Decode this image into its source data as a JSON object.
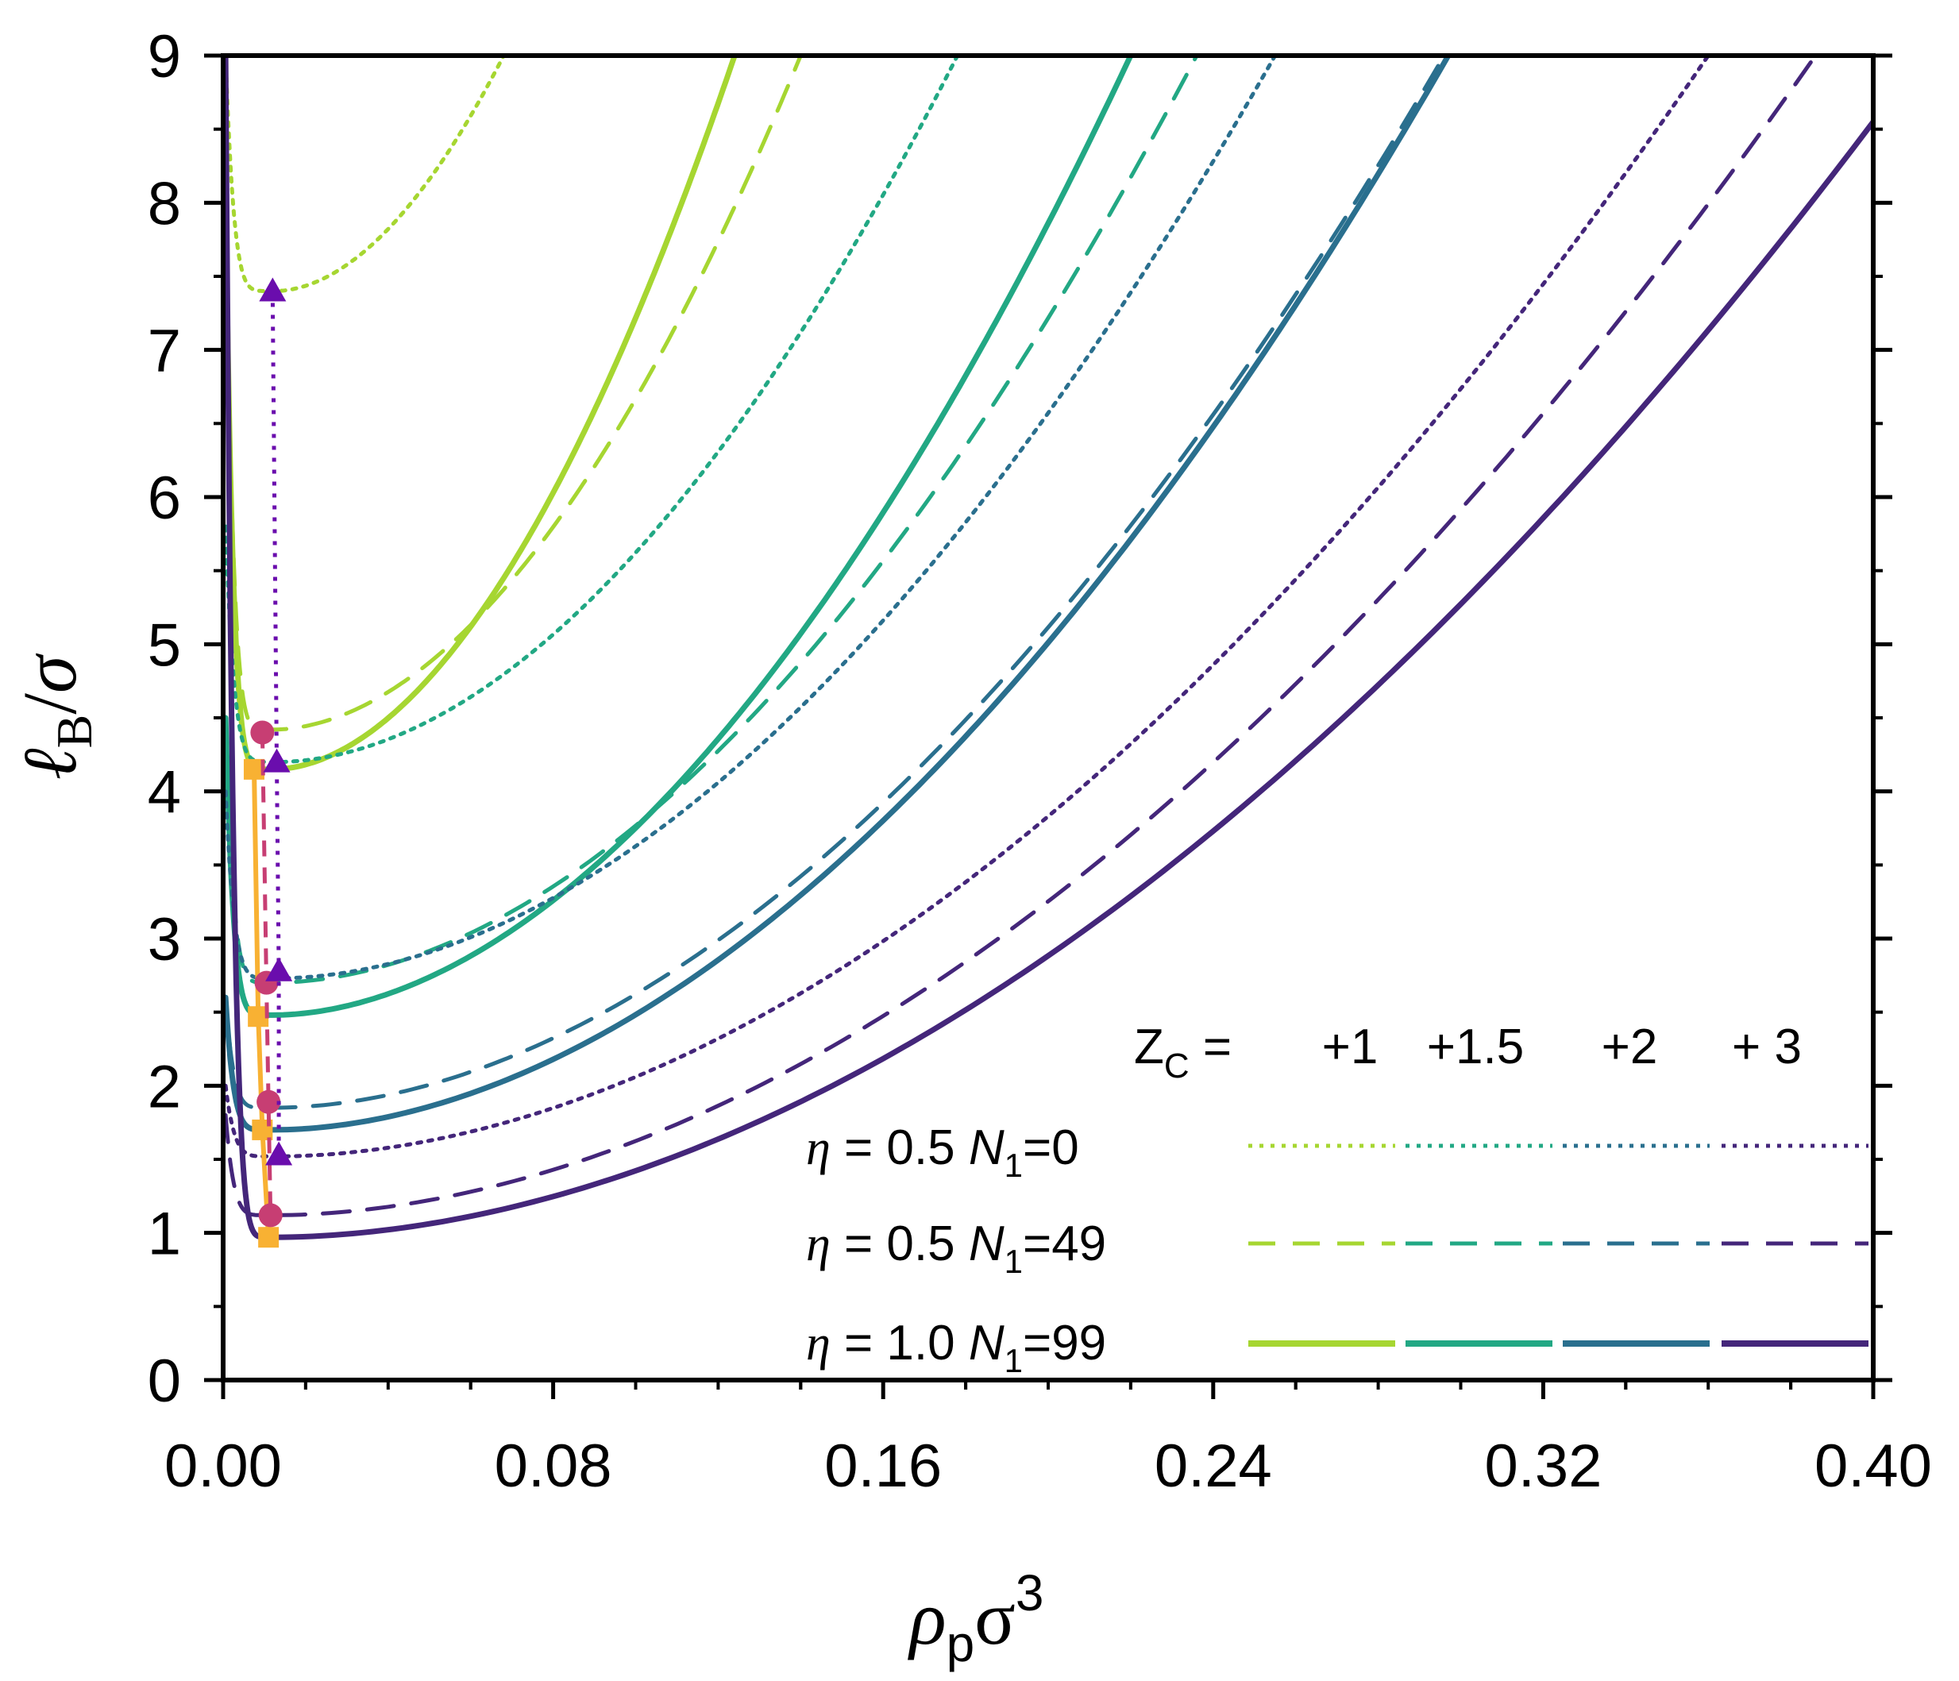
{
  "chart_data": {
    "type": "line",
    "xlabel": "ρpσ3",
    "xlabel_parts": {
      "base": "ρ",
      "sub": "p",
      "mid": "σ",
      "sup": "3"
    },
    "ylabel": "ℓB/σ",
    "ylabel_parts": {
      "l": "ℓ",
      "sub": "B",
      "slash": "/",
      "sigma": "σ"
    },
    "xlim": [
      0,
      0.4
    ],
    "ylim": [
      0,
      9
    ],
    "x_ticks": [
      0.0,
      0.08,
      0.16,
      0.24,
      0.32,
      0.4
    ],
    "x_tick_labels": [
      "0.00",
      "0.08",
      "0.16",
      "0.24",
      "0.32",
      "0.40"
    ],
    "y_ticks": [
      0,
      1,
      2,
      3,
      4,
      5,
      6,
      7,
      8,
      9
    ],
    "y_tick_labels": [
      "0",
      "1",
      "2",
      "3",
      "4",
      "5",
      "6",
      "7",
      "8",
      "9"
    ],
    "colors": {
      "zc1": "#a6d631",
      "zc1_5": "#22a884",
      "zc2": "#2a6f8e",
      "zc3": "#44267a",
      "orange": "#f8b133",
      "magenta": "#c73e73",
      "purple": "#6a0dad"
    },
    "legend": {
      "zc_label": "Z",
      "zc_sub": "C",
      "zc_eq": " =",
      "zc_values": [
        "+1",
        "+1.5",
        "+2",
        "+ 3"
      ],
      "rows": [
        {
          "eta": "η",
          "text": " = 0.5 ",
          "n": "N",
          "nsub": "1",
          "nval": "=0",
          "style": "dotted"
        },
        {
          "eta": "η",
          "text": " = 0.5 ",
          "n": "N",
          "nsub": "1",
          "nval": "=49",
          "style": "dashed"
        },
        {
          "eta": "η",
          "text": " = 1.0 ",
          "n": "N",
          "nsub": "1",
          "nval": "=99",
          "style": "solid"
        }
      ]
    },
    "series": [
      {
        "name": "Zc=+1, eta=0.5, N1=0",
        "color": "zc1",
        "style": "dotted",
        "min_x": 0.0125,
        "min_y": 7.4,
        "start_y": 9.0,
        "end_x": 0.068,
        "end_y": 9.0
      },
      {
        "name": "Zc=+1, eta=0.5, N1=49",
        "color": "zc1",
        "style": "dashed",
        "min_x": 0.012,
        "min_y": 4.42,
        "start_y": 8.0,
        "end_x": 0.14,
        "end_y": 9.0
      },
      {
        "name": "Zc=+1, eta=1.0, N1=99",
        "color": "zc1",
        "style": "solid",
        "min_x": 0.012,
        "min_y": 4.15,
        "start_y": 8.0,
        "end_x": 0.124,
        "end_y": 9.0
      },
      {
        "name": "Zc=+1.5, eta=0.5, N1=0",
        "color": "zc1_5",
        "style": "dotted",
        "min_x": 0.013,
        "min_y": 4.2,
        "start_y": 5.8,
        "end_x": 0.178,
        "end_y": 9.0
      },
      {
        "name": "Zc=+1.5, eta=0.5, N1=49",
        "color": "zc1_5",
        "style": "dashed",
        "min_x": 0.012,
        "min_y": 2.7,
        "start_y": 4.5,
        "end_x": 0.236,
        "end_y": 9.0
      },
      {
        "name": "Zc=+1.5, eta=1.0, N1=99",
        "color": "zc1_5",
        "style": "solid",
        "min_x": 0.012,
        "min_y": 2.48,
        "start_y": 4.5,
        "end_x": 0.22,
        "end_y": 9.0
      },
      {
        "name": "Zc=+2, eta=0.5, N1=0",
        "color": "zc2",
        "style": "dotted",
        "min_x": 0.013,
        "min_y": 2.73,
        "start_y": 4.0,
        "end_x": 0.255,
        "end_y": 9.0
      },
      {
        "name": "Zc=+2, eta=0.5, N1=49",
        "color": "zc2",
        "style": "dashed",
        "min_x": 0.012,
        "min_y": 1.85,
        "start_y": 2.6,
        "end_x": 0.296,
        "end_y": 9.0
      },
      {
        "name": "Zc=+2, eta=1.0, N1=99",
        "color": "zc2",
        "style": "solid",
        "min_x": 0.012,
        "min_y": 1.7,
        "start_y": 2.6,
        "end_x": 0.297,
        "end_y": 9.0
      },
      {
        "name": "Zc=+3, eta=0.5, N1=0",
        "color": "zc3",
        "style": "dotted",
        "min_x": 0.013,
        "min_y": 1.52,
        "start_y": 2.0,
        "end_x": 0.36,
        "end_y": 9.0
      },
      {
        "name": "Zc=+3, eta=0.5, N1=49",
        "color": "zc3",
        "style": "dashed",
        "min_x": 0.012,
        "min_y": 1.12,
        "start_y": 1.8,
        "end_x": 0.386,
        "end_y": 9.0
      },
      {
        "name": "Zc=+3, eta=1.0, N1=99",
        "color": "zc3",
        "style": "solid",
        "min_x": 0.012,
        "min_y": 0.97,
        "start_y": 9.0,
        "end_x": 0.4,
        "end_y": 8.55
      }
    ],
    "marker_series": [
      {
        "name": "minima eta=1.0 N1=99",
        "marker": "square",
        "color": "orange",
        "line": "solid",
        "x": [
          0.0075,
          0.0085,
          0.0095,
          0.011
        ],
        "y": [
          4.15,
          2.47,
          1.7,
          0.97
        ]
      },
      {
        "name": "minima eta=0.5 N1=49",
        "marker": "circle",
        "color": "magenta",
        "line": "dashed",
        "x": [
          0.0095,
          0.0105,
          0.011,
          0.0115
        ],
        "y": [
          4.4,
          2.7,
          1.89,
          1.12
        ]
      },
      {
        "name": "minima eta=0.5 N1=0",
        "marker": "triangle",
        "color": "purple",
        "line": "dotted",
        "x": [
          0.012,
          0.013,
          0.0135,
          0.0135
        ],
        "y": [
          7.4,
          4.2,
          2.78,
          1.53
        ]
      }
    ]
  }
}
